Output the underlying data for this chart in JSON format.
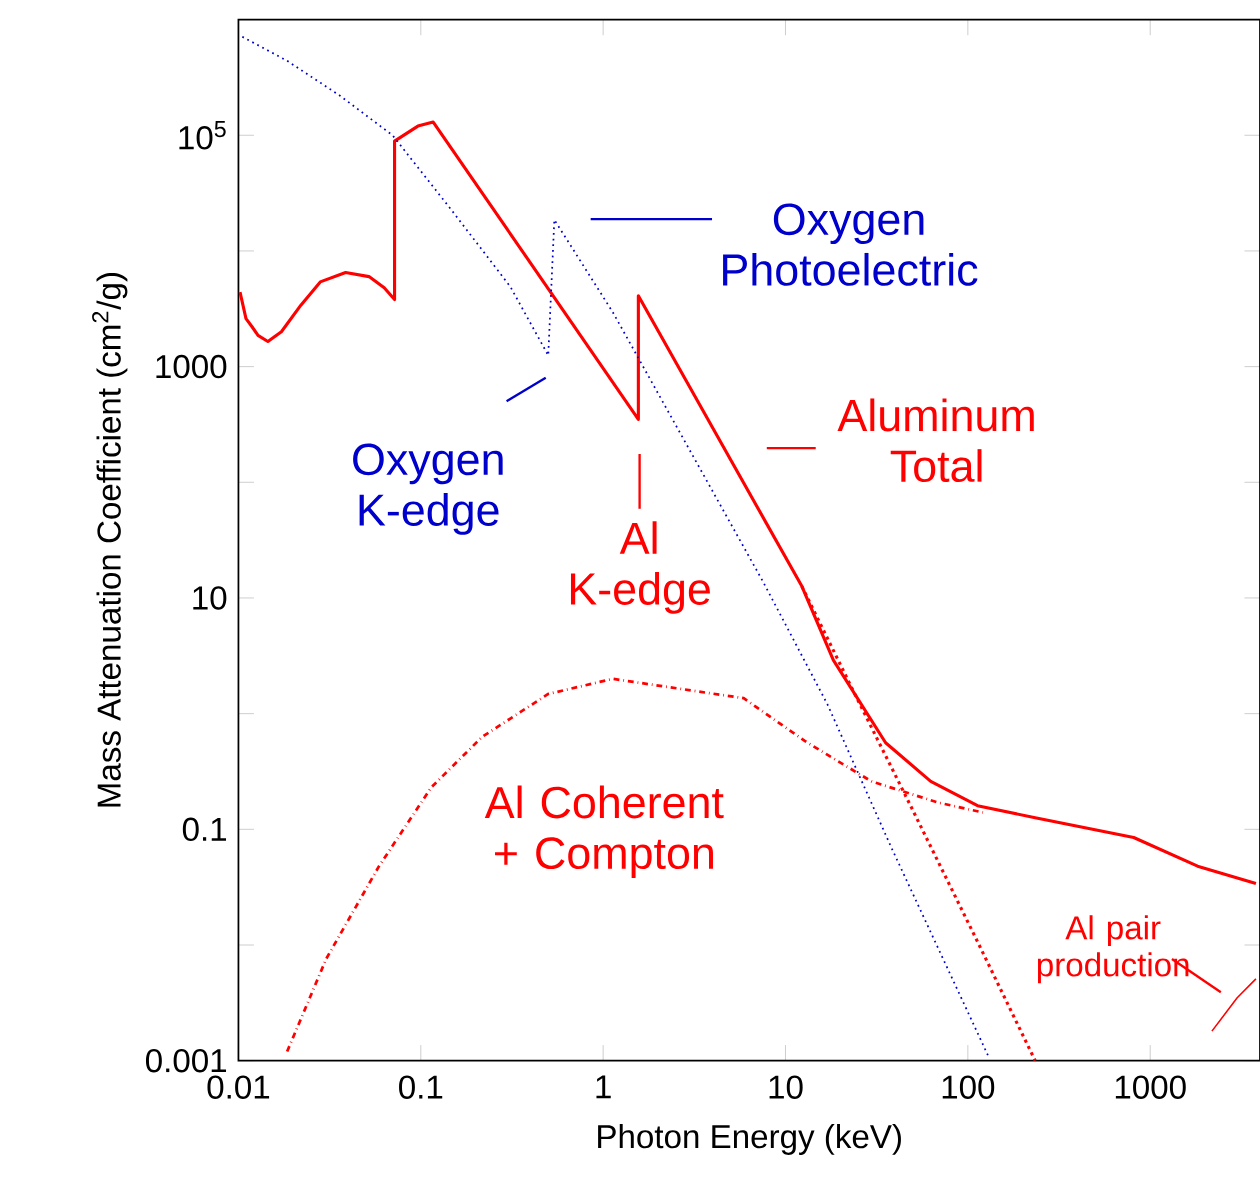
{
  "chart_data": {
    "type": "line",
    "xlabel": "Photon Energy (keV)",
    "ylabel": "Mass Attenuation Coefficient (cm$^{2}$/g)",
    "log": "xy",
    "xlim": [
      0.01,
      4000
    ],
    "ylim": [
      0.001,
      1000000
    ],
    "xticks": [
      0.01,
      0.1,
      1,
      10,
      100,
      1000
    ],
    "yticks": [
      0.001,
      {
        "value": 0.01,
        "label": null
      },
      0.1,
      {
        "value": 1,
        "label": null
      },
      10,
      {
        "value": 100,
        "label": null
      },
      1000,
      {
        "value": 10000,
        "label": null
      },
      {
        "value": 100000,
        "label": "10$^{5}$"
      },
      {
        "value": 1000000,
        "label": null
      }
    ],
    "marker": "none",
    "series": [
      {
        "color": "#ff0000",
        "line_style": "solid",
        "x": [
          0.0102,
          0.011,
          0.0119,
          0.0128,
          0.0145,
          0.0172,
          0.022,
          0.0281,
          0.0387,
          0.052,
          0.063,
          0.0718,
          0.0718,
          0.0964,
          0.117,
          1.56,
          1.56,
          12.3,
          18.3,
          35.4,
          62.6,
          113,
          234,
          812,
          1820,
          3800
        ],
        "values": [
          4400,
          2600,
          2200,
          1860,
          1650,
          2000,
          3400,
          5400,
          6500,
          6000,
          4800,
          3800,
          89000,
          120000,
          130000,
          350,
          4100,
          12.6,
          2.9,
          0.56,
          0.26,
          0.16,
          0.126,
          0.085,
          0.048,
          0.034
        ]
      },
      {
        "color": "#0000cc",
        "line_style": "dotted",
        "x": [
          0.0105,
          0.0185,
          0.036,
          0.07,
          0.146,
          0.31,
          0.5,
          0.54,
          1.13,
          7.5,
          17,
          38,
          130
        ],
        "values": [
          710000,
          440000,
          220000,
          100000,
          23000,
          4900,
          1250,
          18600,
          2950,
          14,
          1.2,
          0.07,
          0.00108
        ]
      },
      {
        "color": "#ff0000",
        "line_style": "dotted",
        "x": [
          12.3,
          23.4,
          49,
          112,
          234
        ],
        "values": [
          12.6,
          1.6,
          0.155,
          0.011,
          0.001
        ]
      },
      {
        "color": "#ff0000",
        "line_style": "dashdot",
        "x": [
          0.0185,
          0.0303,
          0.059,
          0.114,
          0.217,
          0.5,
          1.13,
          5.9,
          13.2,
          29.6,
          69,
          121
        ],
        "values": [
          0.0012,
          0.0076,
          0.048,
          0.23,
          0.63,
          1.48,
          2.0,
          1.36,
          0.56,
          0.26,
          0.17,
          0.14
        ]
      },
      {
        "color": "#ff0000",
        "line_style": "solid",
        "x": [
          2180,
          3000,
          3800
        ],
        "values": [
          0.0018,
          0.0035,
          0.0051
        ]
      }
    ],
    "annotations": [
      "Oxygen Photoelectric",
      "Oxygen K-edge",
      "Aluminum Total",
      "Al K-edge",
      "Al Coherent + Compton",
      "Al pair production"
    ]
  }
}
